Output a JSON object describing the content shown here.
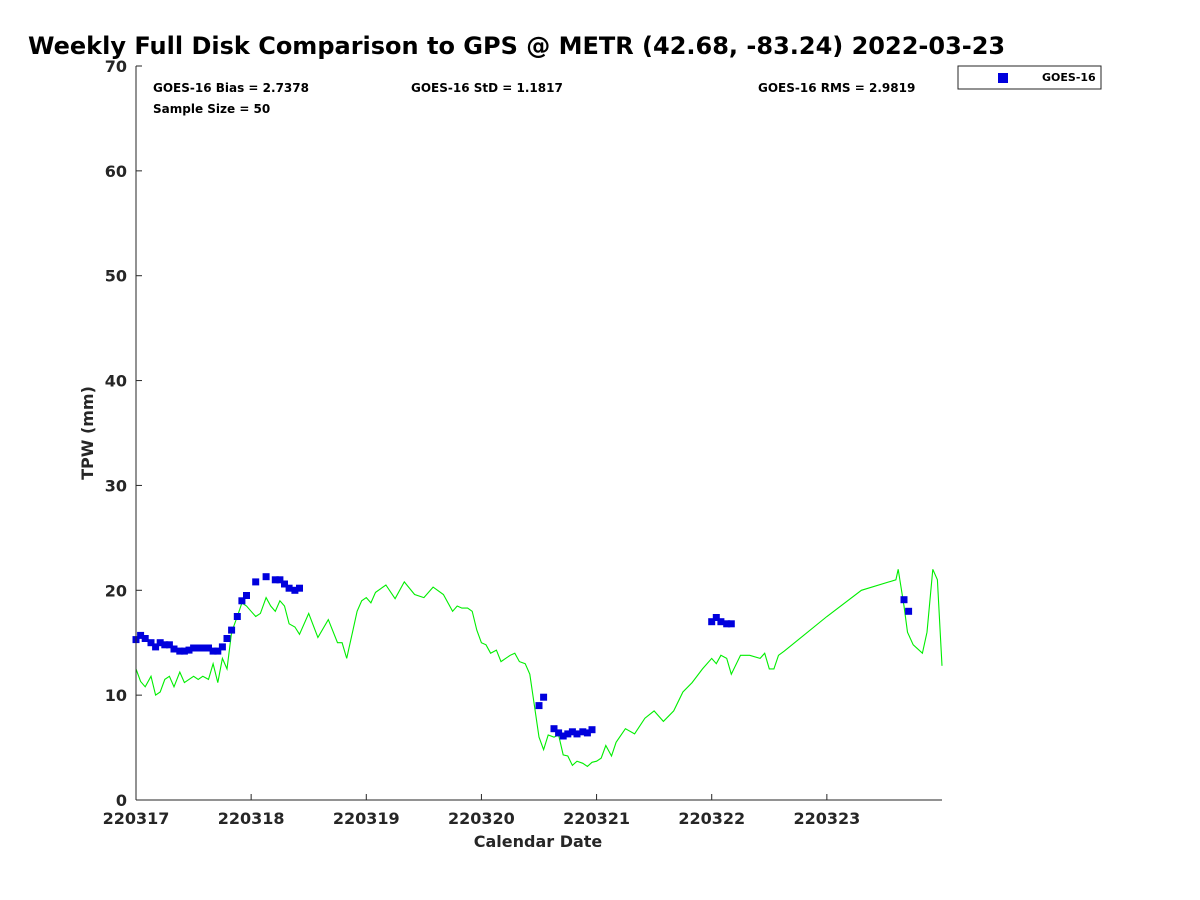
{
  "chart_data": {
    "type": "scatter",
    "title": "Weekly Full Disk Comparison to GPS @ METR (42.68, -83.24) 2022-03-23",
    "xlabel": "Calendar Date",
    "ylabel": "TPW (mm)",
    "xlim": [
      220317,
      220324
    ],
    "ylim": [
      0,
      70
    ],
    "x_ticks": [
      220317,
      220318,
      220319,
      220320,
      220321,
      220322,
      220323
    ],
    "x_tick_labels": [
      "220317",
      "220318",
      "220319",
      "220320",
      "220321",
      "220322",
      "220323"
    ],
    "y_ticks": [
      0,
      10,
      20,
      30,
      40,
      50,
      60,
      70
    ],
    "y_tick_labels": [
      "0",
      "10",
      "20",
      "30",
      "40",
      "50",
      "60",
      "70"
    ],
    "grid": false,
    "legend_position": "outside-top-right",
    "stats": {
      "bias": "GOES-16 Bias = 2.7378",
      "std": "GOES-16 StD = 1.1817",
      "rms": "GOES-16 RMS = 2.9819",
      "sample": "Sample Size = 50"
    },
    "series": [
      {
        "name": "GOES-16",
        "kind": "scatter",
        "marker": "square",
        "color": "#0000dd",
        "points": [
          [
            220317.0,
            15.3
          ],
          [
            220317.04,
            15.7
          ],
          [
            220317.08,
            15.4
          ],
          [
            220317.13,
            15.0
          ],
          [
            220317.17,
            14.6
          ],
          [
            220317.21,
            15.0
          ],
          [
            220317.25,
            14.8
          ],
          [
            220317.29,
            14.8
          ],
          [
            220317.33,
            14.4
          ],
          [
            220317.38,
            14.2
          ],
          [
            220317.42,
            14.2
          ],
          [
            220317.46,
            14.3
          ],
          [
            220317.5,
            14.5
          ],
          [
            220317.54,
            14.5
          ],
          [
            220317.58,
            14.5
          ],
          [
            220317.63,
            14.5
          ],
          [
            220317.67,
            14.2
          ],
          [
            220317.71,
            14.2
          ],
          [
            220317.75,
            14.6
          ],
          [
            220317.79,
            15.4
          ],
          [
            220317.83,
            16.2
          ],
          [
            220317.88,
            17.5
          ],
          [
            220317.92,
            19.0
          ],
          [
            220317.96,
            19.5
          ],
          [
            220318.04,
            20.8
          ],
          [
            220318.13,
            21.3
          ],
          [
            220318.21,
            21.0
          ],
          [
            220318.25,
            21.0
          ],
          [
            220318.29,
            20.6
          ],
          [
            220318.33,
            20.2
          ],
          [
            220318.38,
            20.0
          ],
          [
            220318.42,
            20.2
          ],
          [
            220320.5,
            9.0
          ],
          [
            220320.54,
            9.8
          ],
          [
            220320.63,
            6.8
          ],
          [
            220320.67,
            6.4
          ],
          [
            220320.71,
            6.1
          ],
          [
            220320.75,
            6.3
          ],
          [
            220320.79,
            6.5
          ],
          [
            220320.83,
            6.3
          ],
          [
            220320.88,
            6.5
          ],
          [
            220320.92,
            6.4
          ],
          [
            220320.96,
            6.7
          ],
          [
            220322.0,
            17.0
          ],
          [
            220322.04,
            17.4
          ],
          [
            220322.08,
            17.0
          ],
          [
            220322.13,
            16.8
          ],
          [
            220322.17,
            16.8
          ],
          [
            220323.67,
            19.1
          ],
          [
            220323.71,
            18.0
          ]
        ]
      },
      {
        "kind": "line",
        "color": "#00ee00",
        "points": [
          [
            220317.0,
            12.5
          ],
          [
            220317.04,
            11.3
          ],
          [
            220317.08,
            10.8
          ],
          [
            220317.13,
            11.8
          ],
          [
            220317.17,
            10.0
          ],
          [
            220317.21,
            10.3
          ],
          [
            220317.25,
            11.5
          ],
          [
            220317.29,
            11.8
          ],
          [
            220317.33,
            10.8
          ],
          [
            220317.38,
            12.2
          ],
          [
            220317.42,
            11.2
          ],
          [
            220317.46,
            11.5
          ],
          [
            220317.5,
            11.8
          ],
          [
            220317.54,
            11.5
          ],
          [
            220317.58,
            11.8
          ],
          [
            220317.63,
            11.5
          ],
          [
            220317.67,
            13.0
          ],
          [
            220317.71,
            11.2
          ],
          [
            220317.75,
            13.5
          ],
          [
            220317.79,
            12.5
          ],
          [
            220317.83,
            16.0
          ],
          [
            220317.88,
            17.5
          ],
          [
            220317.92,
            18.8
          ],
          [
            220317.96,
            18.5
          ],
          [
            220318.0,
            18.0
          ],
          [
            220318.04,
            17.5
          ],
          [
            220318.08,
            17.8
          ],
          [
            220318.13,
            19.3
          ],
          [
            220318.17,
            18.5
          ],
          [
            220318.21,
            18.0
          ],
          [
            220318.25,
            19.0
          ],
          [
            220318.29,
            18.5
          ],
          [
            220318.33,
            16.8
          ],
          [
            220318.38,
            16.5
          ],
          [
            220318.42,
            15.8
          ],
          [
            220318.5,
            17.8
          ],
          [
            220318.58,
            15.5
          ],
          [
            220318.67,
            17.2
          ],
          [
            220318.75,
            15.0
          ],
          [
            220318.79,
            15.0
          ],
          [
            220318.83,
            13.5
          ],
          [
            220318.88,
            16.0
          ],
          [
            220318.92,
            18.0
          ],
          [
            220318.96,
            19.0
          ],
          [
            220319.0,
            19.3
          ],
          [
            220319.04,
            18.8
          ],
          [
            220319.08,
            19.8
          ],
          [
            220319.17,
            20.5
          ],
          [
            220319.25,
            19.2
          ],
          [
            220319.33,
            20.8
          ],
          [
            220319.42,
            19.6
          ],
          [
            220319.5,
            19.3
          ],
          [
            220319.58,
            20.3
          ],
          [
            220319.67,
            19.6
          ],
          [
            220319.75,
            18.0
          ],
          [
            220319.79,
            18.5
          ],
          [
            220319.83,
            18.3
          ],
          [
            220319.88,
            18.3
          ],
          [
            220319.92,
            18.0
          ],
          [
            220319.96,
            16.2
          ],
          [
            220320.0,
            15.0
          ],
          [
            220320.04,
            14.8
          ],
          [
            220320.08,
            14.0
          ],
          [
            220320.13,
            14.3
          ],
          [
            220320.17,
            13.2
          ],
          [
            220320.21,
            13.5
          ],
          [
            220320.25,
            13.8
          ],
          [
            220320.29,
            14.0
          ],
          [
            220320.33,
            13.2
          ],
          [
            220320.38,
            13.0
          ],
          [
            220320.42,
            12.0
          ],
          [
            220320.46,
            9.0
          ],
          [
            220320.5,
            6.0
          ],
          [
            220320.54,
            4.8
          ],
          [
            220320.58,
            6.2
          ],
          [
            220320.63,
            6.0
          ],
          [
            220320.67,
            6.2
          ],
          [
            220320.71,
            4.3
          ],
          [
            220320.75,
            4.2
          ],
          [
            220320.79,
            3.3
          ],
          [
            220320.83,
            3.7
          ],
          [
            220320.88,
            3.5
          ],
          [
            220320.92,
            3.2
          ],
          [
            220320.96,
            3.6
          ],
          [
            220321.0,
            3.7
          ],
          [
            220321.04,
            4.0
          ],
          [
            220321.08,
            5.2
          ],
          [
            220321.13,
            4.2
          ],
          [
            220321.17,
            5.5
          ],
          [
            220321.25,
            6.8
          ],
          [
            220321.33,
            6.3
          ],
          [
            220321.42,
            7.8
          ],
          [
            220321.5,
            8.5
          ],
          [
            220321.58,
            7.5
          ],
          [
            220321.67,
            8.5
          ],
          [
            220321.75,
            10.3
          ],
          [
            220321.83,
            11.2
          ],
          [
            220321.92,
            12.5
          ],
          [
            220322.0,
            13.5
          ],
          [
            220322.04,
            13.0
          ],
          [
            220322.08,
            13.8
          ],
          [
            220322.13,
            13.5
          ],
          [
            220322.17,
            12.0
          ],
          [
            220322.25,
            13.8
          ],
          [
            220322.33,
            13.8
          ],
          [
            220322.42,
            13.5
          ],
          [
            220322.46,
            14.0
          ],
          [
            220322.5,
            12.5
          ],
          [
            220322.54,
            12.5
          ],
          [
            220322.58,
            13.8
          ],
          [
            220322.63,
            14.2
          ],
          [
            220323.0,
            17.5
          ],
          [
            220323.3,
            20.0
          ],
          [
            220323.6,
            21.0
          ],
          [
            220323.62,
            22.0
          ],
          [
            220323.67,
            18.5
          ],
          [
            220323.7,
            16.0
          ],
          [
            220323.75,
            14.8
          ],
          [
            220323.83,
            14.0
          ],
          [
            220323.87,
            16.0
          ],
          [
            220323.92,
            22.0
          ],
          [
            220323.96,
            21.0
          ],
          [
            220324.0,
            12.8
          ]
        ]
      }
    ]
  }
}
